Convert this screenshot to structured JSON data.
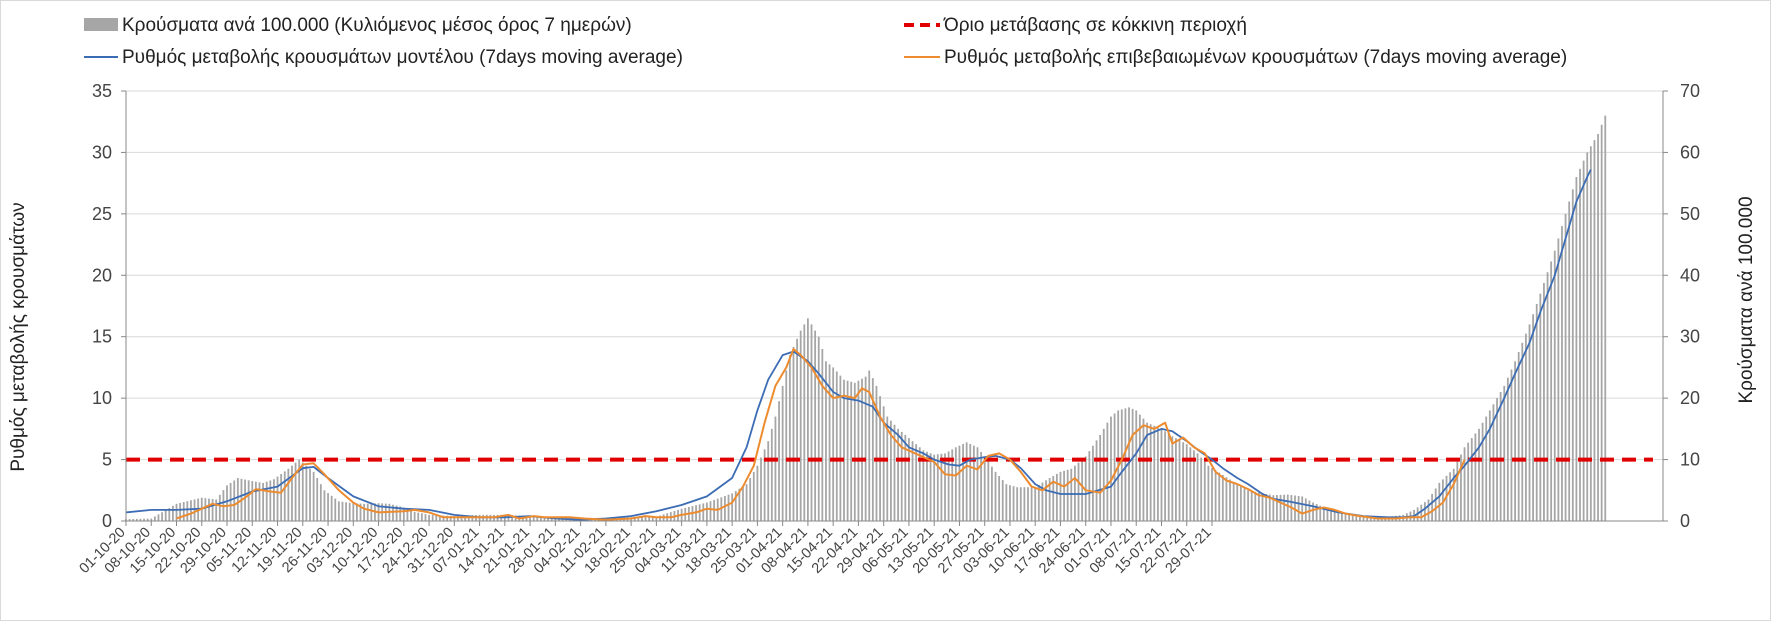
{
  "chart_data": {
    "type": "bar",
    "legend": {
      "placement": "top",
      "entries": [
        {
          "key": "cases",
          "label": "Κρούσματα ανά 100.000 (Κυλιόμενος μέσος όρος 7 ημερών)"
        },
        {
          "key": "threshold",
          "label": "Όριο μετάβασης σε κόκκινη περιοχή"
        },
        {
          "key": "model",
          "label": "Ρυθμός μεταβολής κρουσμάτων μοντέλου (7days moving average)"
        },
        {
          "key": "confirmed",
          "label": "Ρυθμός μεταβολής επιβεβαιωμένων κρουσμάτων (7days moving average)"
        }
      ]
    },
    "ylabel_left": "Ρυθμός μεταβολής κρουσμάτων",
    "ylabel_right": "Κρούσματα ανά 100.000",
    "ylim_left": [
      0,
      35
    ],
    "ylim_right": [
      0,
      70
    ],
    "yticks_left": [
      "0",
      "5",
      "10",
      "15",
      "20",
      "25",
      "30",
      "35"
    ],
    "yticks_right": [
      "0",
      "10",
      "20",
      "30",
      "40",
      "50",
      "60",
      "70"
    ],
    "grid": true,
    "colors": {
      "bars": "#a6a6a6",
      "threshold": "#e00000",
      "model": "#3b6cb4",
      "confirmed": "#ed8b2f",
      "grid": "#d9d9d9"
    },
    "x_dates": [
      "01-10-20",
      "08-10-20",
      "15-10-20",
      "22-10-20",
      "29-10-20",
      "05-11-20",
      "12-11-20",
      "19-11-20",
      "26-11-20",
      "03-12-20",
      "10-12-20",
      "17-12-20",
      "24-12-20",
      "31-12-20",
      "07-01-21",
      "14-01-21",
      "21-01-21",
      "28-01-21",
      "04-02-21",
      "11-02-21",
      "18-02-21",
      "25-02-21",
      "04-03-21",
      "11-03-21",
      "18-03-21",
      "25-03-21",
      "01-04-21",
      "08-04-21",
      "15-04-21",
      "22-04-21",
      "29-04-21",
      "06-05-21",
      "13-05-21",
      "20-05-21",
      "27-05-21",
      "03-06-21",
      "10-06-21",
      "17-06-21",
      "24-06-21",
      "01-07-21",
      "08-07-21",
      "15-07-21",
      "22-07-21",
      "29-07-21"
    ],
    "threshold_value": 5,
    "bars_cases_per_100k": {
      "axis": "right",
      "points": [
        [
          0,
          0.3
        ],
        [
          7,
          0.4
        ],
        [
          14,
          2.8
        ],
        [
          21,
          3.8
        ],
        [
          25,
          3.5
        ],
        [
          28,
          5.8
        ],
        [
          31,
          7
        ],
        [
          35,
          6.5
        ],
        [
          38,
          6.2
        ],
        [
          41,
          6.8
        ],
        [
          45,
          8.5
        ],
        [
          48,
          10
        ],
        [
          52,
          8
        ],
        [
          55,
          5
        ],
        [
          59,
          3.2
        ],
        [
          63,
          2.9
        ],
        [
          66,
          2.8
        ],
        [
          70,
          2.9
        ],
        [
          73,
          2.8
        ],
        [
          77,
          2.2
        ],
        [
          80,
          1.5
        ],
        [
          84,
          1
        ],
        [
          91,
          0.8
        ],
        [
          98,
          1
        ],
        [
          105,
          1
        ],
        [
          112,
          0.8
        ],
        [
          119,
          0.6
        ],
        [
          126,
          0.5
        ],
        [
          133,
          0.5
        ],
        [
          140,
          0.6
        ],
        [
          147,
          0.7
        ],
        [
          154,
          2
        ],
        [
          161,
          3
        ],
        [
          168,
          4.5
        ],
        [
          172,
          6
        ],
        [
          175,
          9
        ],
        [
          178,
          13
        ],
        [
          180,
          17
        ],
        [
          182,
          22
        ],
        [
          184,
          27
        ],
        [
          187,
          31
        ],
        [
          189,
          33
        ],
        [
          192,
          30
        ],
        [
          194,
          26
        ],
        [
          196,
          25
        ],
        [
          199,
          23
        ],
        [
          202,
          22.5
        ],
        [
          205,
          23.5
        ],
        [
          206,
          24.5
        ],
        [
          208,
          22
        ],
        [
          211,
          17
        ],
        [
          214,
          15
        ],
        [
          217,
          13.5
        ],
        [
          219,
          12.5
        ],
        [
          221,
          11.5
        ],
        [
          224,
          10.8
        ],
        [
          227,
          11
        ],
        [
          230,
          12
        ],
        [
          233,
          12.8
        ],
        [
          236,
          12
        ],
        [
          238,
          10.5
        ],
        [
          241,
          8
        ],
        [
          244,
          6
        ],
        [
          247,
          5.5
        ],
        [
          252,
          5.5
        ],
        [
          256,
          7
        ],
        [
          259,
          8
        ],
        [
          262,
          8.5
        ],
        [
          266,
          10.5
        ],
        [
          270,
          14
        ],
        [
          273,
          17
        ],
        [
          275,
          18
        ],
        [
          278,
          18.5
        ],
        [
          280,
          18
        ],
        [
          283,
          16
        ],
        [
          287,
          15
        ],
        [
          290,
          13.8
        ],
        [
          294,
          12.5
        ],
        [
          297,
          11
        ],
        [
          300,
          9
        ],
        [
          304,
          7.5
        ],
        [
          308,
          6
        ],
        [
          311,
          5
        ],
        [
          315,
          4.5
        ],
        [
          318,
          4.2
        ],
        [
          322,
          4.3
        ],
        [
          326,
          4
        ],
        [
          329,
          3
        ],
        [
          333,
          2
        ],
        [
          336,
          1.5
        ],
        [
          340,
          1
        ],
        [
          344,
          0.8
        ],
        [
          347,
          0.6
        ],
        [
          350,
          0.7
        ],
        [
          354,
          1
        ],
        [
          357,
          1.8
        ],
        [
          361,
          3.5
        ],
        [
          364,
          6.2
        ],
        [
          368,
          8.5
        ],
        [
          371,
          12
        ],
        [
          375,
          15
        ],
        [
          378,
          18
        ],
        [
          382,
          22
        ],
        [
          385,
          26
        ],
        [
          389,
          32
        ],
        [
          392,
          37
        ],
        [
          396,
          44
        ],
        [
          399,
          50
        ],
        [
          402,
          56
        ],
        [
          405,
          60
        ],
        [
          408,
          63
        ],
        [
          410,
          66
        ]
      ]
    },
    "series": [
      {
        "name": "Ρυθμός μεταβολής κρουσμάτων μοντέλου (7days moving average)",
        "key": "model",
        "axis": "left",
        "points": [
          [
            0,
            0.7
          ],
          [
            7,
            0.9
          ],
          [
            14,
            0.9
          ],
          [
            21,
            1
          ],
          [
            28,
            1.6
          ],
          [
            35,
            2.4
          ],
          [
            42,
            2.8
          ],
          [
            49,
            4.3
          ],
          [
            52,
            4.4
          ],
          [
            56,
            3.5
          ],
          [
            63,
            2
          ],
          [
            70,
            1.2
          ],
          [
            77,
            1
          ],
          [
            84,
            0.9
          ],
          [
            91,
            0.5
          ],
          [
            98,
            0.3
          ],
          [
            105,
            0.3
          ],
          [
            112,
            0.4
          ],
          [
            119,
            0.2
          ],
          [
            126,
            0.1
          ],
          [
            133,
            0.2
          ],
          [
            140,
            0.4
          ],
          [
            147,
            0.8
          ],
          [
            154,
            1.3
          ],
          [
            161,
            2
          ],
          [
            168,
            3.5
          ],
          [
            172,
            6
          ],
          [
            175,
            9
          ],
          [
            178,
            11.5
          ],
          [
            182,
            13.5
          ],
          [
            185,
            13.8
          ],
          [
            189,
            13
          ],
          [
            192,
            12
          ],
          [
            196,
            10.5
          ],
          [
            199,
            10
          ],
          [
            203,
            9.8
          ],
          [
            207,
            9.3
          ],
          [
            210,
            8
          ],
          [
            214,
            7
          ],
          [
            217,
            6
          ],
          [
            221,
            5.5
          ],
          [
            224,
            5
          ],
          [
            228,
            4.6
          ],
          [
            231,
            4.5
          ],
          [
            234,
            5
          ],
          [
            238,
            5.2
          ],
          [
            241,
            5.3
          ],
          [
            245,
            5
          ],
          [
            248,
            4.3
          ],
          [
            252,
            3
          ],
          [
            255,
            2.5
          ],
          [
            259,
            2.2
          ],
          [
            266,
            2.2
          ],
          [
            273,
            2.8
          ],
          [
            276,
            4
          ],
          [
            280,
            5.5
          ],
          [
            283,
            7
          ],
          [
            287,
            7.5
          ],
          [
            290,
            7.3
          ],
          [
            294,
            6.5
          ],
          [
            297,
            5.8
          ],
          [
            301,
            5
          ],
          [
            304,
            4.3
          ],
          [
            308,
            3.5
          ],
          [
            311,
            3
          ],
          [
            315,
            2.2
          ],
          [
            318,
            1.8
          ],
          [
            322,
            1.6
          ],
          [
            329,
            1.2
          ],
          [
            336,
            0.7
          ],
          [
            343,
            0.4
          ],
          [
            350,
            0.3
          ],
          [
            354,
            0.3
          ],
          [
            357,
            0.4
          ],
          [
            360,
            1
          ],
          [
            364,
            2
          ],
          [
            368,
            3.5
          ],
          [
            371,
            4.5
          ],
          [
            375,
            6
          ],
          [
            378,
            7.5
          ],
          [
            382,
            10
          ],
          [
            385,
            12
          ],
          [
            389,
            14.5
          ],
          [
            392,
            17
          ],
          [
            396,
            20
          ],
          [
            399,
            23
          ],
          [
            402,
            26
          ],
          [
            405,
            28
          ],
          [
            406,
            28.6
          ]
        ]
      },
      {
        "name": "Ρυθμός μεταβολής επιβεβαιωμένων κρουσμάτων (7days moving average)",
        "key": "confirmed",
        "axis": "left",
        "points": [
          [
            14,
            0.2
          ],
          [
            18,
            0.6
          ],
          [
            21,
            1
          ],
          [
            24,
            1.4
          ],
          [
            27,
            1.2
          ],
          [
            30,
            1.3
          ],
          [
            33,
            1.9
          ],
          [
            36,
            2.6
          ],
          [
            40,
            2.4
          ],
          [
            43,
            2.3
          ],
          [
            46,
            3.5
          ],
          [
            49,
            4.6
          ],
          [
            52,
            4.7
          ],
          [
            55,
            3.8
          ],
          [
            59,
            2.5
          ],
          [
            63,
            1.5
          ],
          [
            66,
            1
          ],
          [
            70,
            0.7
          ],
          [
            77,
            0.8
          ],
          [
            80,
            0.9
          ],
          [
            84,
            0.7
          ],
          [
            88,
            0.3
          ],
          [
            95,
            0.3
          ],
          [
            102,
            0.3
          ],
          [
            106,
            0.5
          ],
          [
            109,
            0.2
          ],
          [
            113,
            0.4
          ],
          [
            116,
            0.3
          ],
          [
            120,
            0.3
          ],
          [
            123,
            0.3
          ],
          [
            127,
            0.2
          ],
          [
            133,
            0.1
          ],
          [
            140,
            0.2
          ],
          [
            144,
            0.4
          ],
          [
            147,
            0.3
          ],
          [
            151,
            0.3
          ],
          [
            154,
            0.5
          ],
          [
            158,
            0.7
          ],
          [
            161,
            1
          ],
          [
            164,
            0.9
          ],
          [
            168,
            1.5
          ],
          [
            171,
            2.8
          ],
          [
            174,
            4.5
          ],
          [
            177,
            8
          ],
          [
            180,
            11
          ],
          [
            183,
            12.5
          ],
          [
            185,
            14
          ],
          [
            187,
            13.5
          ],
          [
            190,
            12.5
          ],
          [
            193,
            11
          ],
          [
            196,
            10
          ],
          [
            199,
            10.2
          ],
          [
            202,
            10
          ],
          [
            204,
            10.8
          ],
          [
            206,
            10.5
          ],
          [
            209,
            8.5
          ],
          [
            212,
            7
          ],
          [
            215,
            6
          ],
          [
            218,
            5.6
          ],
          [
            221,
            5.2
          ],
          [
            224,
            4.8
          ],
          [
            227,
            3.8
          ],
          [
            230,
            3.7
          ],
          [
            233,
            4.5
          ],
          [
            236,
            4.2
          ],
          [
            239,
            5.3
          ],
          [
            242,
            5.5
          ],
          [
            245,
            5
          ],
          [
            248,
            4
          ],
          [
            251,
            2.8
          ],
          [
            254,
            2.5
          ],
          [
            257,
            3.2
          ],
          [
            260,
            2.8
          ],
          [
            263,
            3.5
          ],
          [
            266,
            2.5
          ],
          [
            270,
            2.3
          ],
          [
            273,
            3.3
          ],
          [
            276,
            5
          ],
          [
            279,
            7
          ],
          [
            282,
            7.8
          ],
          [
            285,
            7.5
          ],
          [
            288,
            8
          ],
          [
            290,
            6.3
          ],
          [
            293,
            6.8
          ],
          [
            296,
            6
          ],
          [
            299,
            5.5
          ],
          [
            302,
            4
          ],
          [
            305,
            3.3
          ],
          [
            308,
            3
          ],
          [
            311,
            2.6
          ],
          [
            314,
            2.1
          ],
          [
            317,
            1.9
          ],
          [
            320,
            1.5
          ],
          [
            323,
            1.1
          ],
          [
            326,
            0.6
          ],
          [
            329,
            0.9
          ],
          [
            332,
            1.1
          ],
          [
            335,
            0.9
          ],
          [
            338,
            0.6
          ],
          [
            342,
            0.4
          ],
          [
            347,
            0.2
          ],
          [
            352,
            0.2
          ],
          [
            356,
            0.3
          ],
          [
            359,
            0.3
          ],
          [
            362,
            0.8
          ],
          [
            365,
            1.5
          ],
          [
            368,
            3
          ],
          [
            371,
            5
          ]
        ]
      }
    ]
  }
}
